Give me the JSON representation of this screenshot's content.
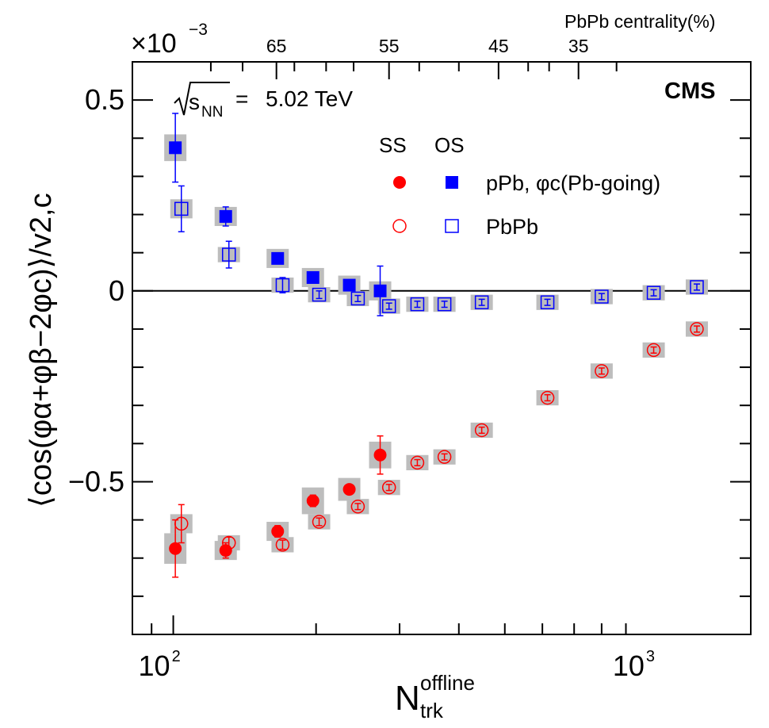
{
  "chart_data": {
    "type": "scatter",
    "title": "",
    "experiment": "CMS",
    "energy_label": "5.02 TeV",
    "energy_prefix": "= ",
    "sqrt_label": "s",
    "sqrt_sub": "NN",
    "exponent_label": "×10",
    "exponent_power": "−3",
    "xlabel": "N",
    "xlabel_sup": "offline",
    "xlabel_sub": "trk",
    "ylabel": "⟨cos(φα+φβ−2φc)⟩/v2,c",
    "xscale": "log",
    "xlim": [
      82,
      1650
    ],
    "ylim": [
      -0.9,
      0.6
    ],
    "y_ticks": [
      0.5,
      0,
      -0.5
    ],
    "y_tick_labels": [
      "0.5",
      "0",
      "−0.5"
    ],
    "x_major_ticks": [
      100,
      1000
    ],
    "x_tick_labels": [
      "10",
      "10"
    ],
    "x_tick_exponent": "2",
    "x_tick_exponent2": "3",
    "top_axis": {
      "title": "PbPb centrality(%)",
      "ticks_ntrk": [
        165,
        285,
        485,
        715
      ],
      "labels": [
        "65",
        "55",
        "45",
        "35"
      ]
    },
    "legend": {
      "header_ss": "SS",
      "header_os": "OS",
      "row1": "pPb, φc(Pb-going)",
      "row2": "PbPb"
    },
    "series": [
      {
        "name": "pPb SS",
        "marker": "filled-circle",
        "color": "#ff0000",
        "x": [
          101,
          129,
          166,
          197,
          235,
          273
        ],
        "y": [
          -0.675,
          -0.68,
          -0.63,
          -0.55,
          -0.52,
          -0.43
        ],
        "yerr": [
          0.075,
          0.02,
          0.015,
          0.015,
          0.01,
          0.05
        ],
        "syst": [
          0.04,
          0.025,
          0.025,
          0.035,
          0.03,
          0.035
        ]
      },
      {
        "name": "pPb OS",
        "marker": "filled-square",
        "color": "#0000ff",
        "x": [
          101,
          129,
          166,
          197,
          235,
          273
        ],
        "y": [
          0.375,
          0.195,
          0.085,
          0.035,
          0.015,
          0.0
        ],
        "yerr": [
          0.09,
          0.025,
          0.01,
          0.01,
          0.01,
          0.065
        ],
        "syst": [
          0.035,
          0.025,
          0.025,
          0.025,
          0.025,
          0.025
        ]
      },
      {
        "name": "PbPb SS",
        "marker": "open-circle",
        "color": "#ff0000",
        "x": [
          104,
          131,
          170,
          203,
          245,
          285,
          327,
          373,
          447,
          615,
          800,
          1030,
          1270
        ],
        "y": [
          -0.61,
          -0.66,
          -0.665,
          -0.605,
          -0.565,
          -0.515,
          -0.45,
          -0.435,
          -0.365,
          -0.28,
          -0.21,
          -0.155,
          -0.1
        ],
        "yerr": [
          0.05,
          0.015,
          0.012,
          0.01,
          0.008,
          0.008,
          0.008,
          0.008,
          0.008,
          0.008,
          0.008,
          0.008,
          0.008
        ],
        "syst": [
          0.025,
          0.02,
          0.02,
          0.02,
          0.02,
          0.02,
          0.02,
          0.02,
          0.02,
          0.02,
          0.02,
          0.02,
          0.02
        ]
      },
      {
        "name": "PbPb OS",
        "marker": "open-square",
        "color": "#0000ff",
        "x": [
          104,
          131,
          170,
          203,
          245,
          285,
          327,
          373,
          447,
          615,
          800,
          1030,
          1270
        ],
        "y": [
          0.215,
          0.095,
          0.015,
          -0.01,
          -0.02,
          -0.04,
          -0.035,
          -0.035,
          -0.03,
          -0.03,
          -0.015,
          -0.005,
          0.01
        ],
        "yerr": [
          0.06,
          0.035,
          0.02,
          0.01,
          0.008,
          0.008,
          0.008,
          0.008,
          0.008,
          0.008,
          0.008,
          0.008,
          0.008
        ],
        "syst": [
          0.025,
          0.02,
          0.02,
          0.02,
          0.02,
          0.02,
          0.02,
          0.02,
          0.02,
          0.02,
          0.02,
          0.02,
          0.02
        ]
      }
    ]
  }
}
